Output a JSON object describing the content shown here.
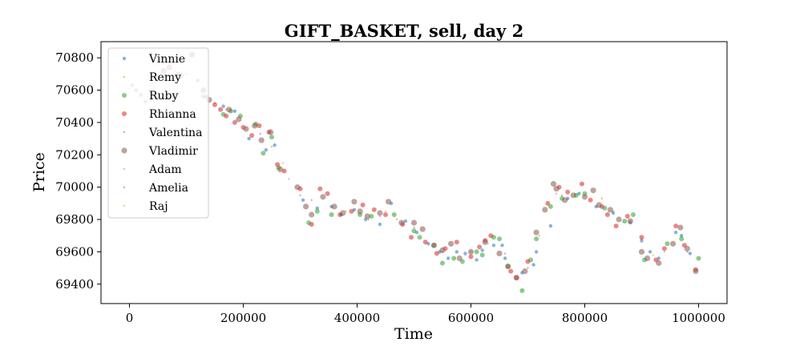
{
  "chart_data": {
    "type": "scatter",
    "title": "GIFT_BASKET, sell, day 2",
    "xlabel": "Time",
    "ylabel": "Price",
    "xlim": [
      -50000,
      1050000
    ],
    "ylim": [
      69280,
      70900
    ],
    "xticks": [
      0,
      200000,
      400000,
      600000,
      800000,
      1000000
    ],
    "xtick_labels": [
      "0",
      "200000",
      "400000",
      "600000",
      "800000",
      "1000000"
    ],
    "yticks": [
      69400,
      69600,
      69800,
      70000,
      70200,
      70400,
      70600,
      70800
    ],
    "ytick_labels": [
      "69400",
      "69600",
      "69800",
      "70000",
      "70200",
      "70400",
      "70600",
      "70800"
    ],
    "grid": false,
    "legend_position": "top-left",
    "series": [
      {
        "name": "Vinnie",
        "color": "#1f77b4",
        "size": "small",
        "points": [
          [
            5000,
            70630
          ],
          [
            12000,
            70600
          ],
          [
            20000,
            70570
          ],
          [
            28000,
            70530
          ],
          [
            60000,
            70680
          ],
          [
            120000,
            70660
          ],
          [
            135000,
            70560
          ],
          [
            165000,
            70500
          ],
          [
            185000,
            70470
          ],
          [
            210000,
            70300
          ],
          [
            240000,
            70230
          ],
          [
            255000,
            70260
          ],
          [
            305000,
            69920
          ],
          [
            330000,
            69870
          ],
          [
            355000,
            69880
          ],
          [
            372000,
            69830
          ],
          [
            395000,
            69860
          ],
          [
            415000,
            69800
          ],
          [
            440000,
            69770
          ],
          [
            460000,
            69900
          ],
          [
            485000,
            69790
          ],
          [
            505000,
            69720
          ],
          [
            525000,
            69650
          ],
          [
            545000,
            69600
          ],
          [
            560000,
            69560
          ],
          [
            575000,
            69600
          ],
          [
            590000,
            69590
          ],
          [
            610000,
            69550
          ],
          [
            620000,
            69610
          ],
          [
            640000,
            69640
          ],
          [
            655000,
            69640
          ],
          [
            660000,
            69560
          ],
          [
            690000,
            69470
          ],
          [
            710000,
            69520
          ],
          [
            715000,
            69600
          ],
          [
            740000,
            69760
          ],
          [
            770000,
            69930
          ],
          [
            790000,
            69960
          ],
          [
            820000,
            69880
          ],
          [
            850000,
            69840
          ],
          [
            880000,
            69780
          ],
          [
            900000,
            69670
          ],
          [
            915000,
            69600
          ],
          [
            930000,
            69560
          ],
          [
            960000,
            69720
          ],
          [
            970000,
            69700
          ],
          [
            985000,
            69590
          ]
        ]
      },
      {
        "name": "Remy",
        "color": "#ff7f0e",
        "size": "tiny",
        "points": [
          [
            0,
            70610
          ],
          [
            35000,
            70580
          ],
          [
            80000,
            70720
          ],
          [
            150000,
            70520
          ],
          [
            250000,
            70250
          ],
          [
            380000,
            69850
          ],
          [
            470000,
            69800
          ],
          [
            600000,
            69600
          ],
          [
            720000,
            69700
          ],
          [
            830000,
            69930
          ],
          [
            940000,
            69600
          ]
        ]
      },
      {
        "name": "Ruby",
        "color": "#2ca02c",
        "size": "medium",
        "points": [
          [
            85000,
            70700
          ],
          [
            130000,
            70560
          ],
          [
            165000,
            70450
          ],
          [
            178000,
            70470
          ],
          [
            195000,
            70440
          ],
          [
            222000,
            70390
          ],
          [
            235000,
            70210
          ],
          [
            250000,
            70310
          ],
          [
            262000,
            70120
          ],
          [
            315000,
            69780
          ],
          [
            330000,
            69850
          ],
          [
            355000,
            69830
          ],
          [
            405000,
            69830
          ],
          [
            425000,
            69820
          ],
          [
            465000,
            69830
          ],
          [
            500000,
            69730
          ],
          [
            510000,
            69690
          ],
          [
            535000,
            69640
          ],
          [
            550000,
            69530
          ],
          [
            570000,
            69560
          ],
          [
            585000,
            69540
          ],
          [
            610000,
            69600
          ],
          [
            620000,
            69580
          ],
          [
            640000,
            69690
          ],
          [
            650000,
            69680
          ],
          [
            665000,
            69510
          ],
          [
            690000,
            69360
          ],
          [
            705000,
            69550
          ],
          [
            715000,
            69680
          ],
          [
            740000,
            69880
          ],
          [
            760000,
            69930
          ],
          [
            785000,
            69950
          ],
          [
            800000,
            69960
          ],
          [
            835000,
            69870
          ],
          [
            870000,
            69790
          ],
          [
            885000,
            69830
          ],
          [
            905000,
            69550
          ],
          [
            945000,
            69650
          ],
          [
            970000,
            69680
          ],
          [
            1000000,
            69560
          ]
        ]
      },
      {
        "name": "Rhianna",
        "color": "#d62728",
        "size": "medium",
        "points": [
          [
            150000,
            70510
          ],
          [
            160000,
            70480
          ],
          [
            170000,
            70440
          ],
          [
            185000,
            70400
          ],
          [
            200000,
            70370
          ],
          [
            215000,
            70320
          ],
          [
            228000,
            70380
          ],
          [
            245000,
            70340
          ],
          [
            260000,
            70140
          ],
          [
            272000,
            70100
          ],
          [
            300000,
            69990
          ],
          [
            320000,
            69770
          ],
          [
            335000,
            69990
          ],
          [
            348000,
            69960
          ],
          [
            370000,
            69830
          ],
          [
            390000,
            69850
          ],
          [
            410000,
            69890
          ],
          [
            430000,
            69860
          ],
          [
            450000,
            69830
          ],
          [
            480000,
            69770
          ],
          [
            495000,
            69690
          ],
          [
            520000,
            69660
          ],
          [
            540000,
            69590
          ],
          [
            555000,
            69620
          ],
          [
            575000,
            69660
          ],
          [
            600000,
            69570
          ],
          [
            615000,
            69630
          ],
          [
            625000,
            69670
          ],
          [
            635000,
            69700
          ],
          [
            670000,
            69480
          ],
          [
            680000,
            69440
          ],
          [
            700000,
            69540
          ],
          [
            735000,
            69900
          ],
          [
            755000,
            70000
          ],
          [
            770000,
            69970
          ],
          [
            795000,
            70020
          ],
          [
            810000,
            69920
          ],
          [
            830000,
            69880
          ],
          [
            840000,
            69830
          ],
          [
            855000,
            69760
          ],
          [
            875000,
            69820
          ],
          [
            900000,
            69690
          ],
          [
            925000,
            69550
          ],
          [
            940000,
            69620
          ],
          [
            960000,
            69760
          ],
          [
            975000,
            69640
          ],
          [
            995000,
            69490
          ]
        ]
      },
      {
        "name": "Valentina",
        "color": "#9467bd",
        "size": "tiny",
        "points": [
          [
            170000,
            70480
          ],
          [
            230000,
            70330
          ],
          [
            320000,
            69920
          ],
          [
            420000,
            69800
          ],
          [
            550000,
            69600
          ],
          [
            660000,
            69590
          ],
          [
            760000,
            69950
          ],
          [
            880000,
            69790
          ]
        ]
      },
      {
        "name": "Vladimir",
        "color": "#8c564b",
        "size": "large",
        "points": [
          [
            60000,
            70720
          ],
          [
            70000,
            70740
          ],
          [
            90000,
            70690
          ],
          [
            110000,
            70820
          ],
          [
            130000,
            70600
          ],
          [
            140000,
            70540
          ],
          [
            175000,
            70480
          ],
          [
            192000,
            70420
          ],
          [
            205000,
            70360
          ],
          [
            220000,
            70380
          ],
          [
            232000,
            70290
          ],
          [
            248000,
            70340
          ],
          [
            265000,
            70110
          ],
          [
            295000,
            70000
          ],
          [
            310000,
            69880
          ],
          [
            320000,
            69830
          ],
          [
            340000,
            69940
          ],
          [
            360000,
            69880
          ],
          [
            375000,
            69840
          ],
          [
            395000,
            69910
          ],
          [
            405000,
            69850
          ],
          [
            418000,
            69820
          ],
          [
            440000,
            69840
          ],
          [
            455000,
            69910
          ],
          [
            478000,
            69780
          ],
          [
            500000,
            69780
          ],
          [
            515000,
            69740
          ],
          [
            535000,
            69640
          ],
          [
            550000,
            69610
          ],
          [
            565000,
            69650
          ],
          [
            580000,
            69560
          ],
          [
            600000,
            69600
          ],
          [
            625000,
            69660
          ],
          [
            650000,
            69590
          ],
          [
            665000,
            69510
          ],
          [
            680000,
            69440
          ],
          [
            695000,
            69480
          ],
          [
            715000,
            69720
          ],
          [
            730000,
            69860
          ],
          [
            745000,
            70020
          ],
          [
            750000,
            69990
          ],
          [
            765000,
            69920
          ],
          [
            780000,
            69950
          ],
          [
            800000,
            69940
          ],
          [
            815000,
            69980
          ],
          [
            825000,
            69890
          ],
          [
            845000,
            69860
          ],
          [
            860000,
            69800
          ],
          [
            880000,
            69790
          ],
          [
            900000,
            69600
          ],
          [
            910000,
            69560
          ],
          [
            930000,
            69530
          ],
          [
            955000,
            69650
          ],
          [
            968000,
            69750
          ],
          [
            980000,
            69620
          ],
          [
            995000,
            69480
          ]
        ]
      },
      {
        "name": "Adam",
        "color": "#e377c2",
        "size": "tiny",
        "points": [
          [
            140000,
            70530
          ],
          [
            280000,
            70050
          ],
          [
            440000,
            69820
          ],
          [
            590000,
            69580
          ],
          [
            750000,
            69960
          ],
          [
            900000,
            69660
          ]
        ]
      },
      {
        "name": "Amelia",
        "color": "#7f7f7f",
        "size": "tiny",
        "points": [
          [
            100000,
            70700
          ],
          [
            300000,
            69950
          ],
          [
            500000,
            69750
          ],
          [
            700000,
            69500
          ],
          [
            850000,
            69850
          ],
          [
            980000,
            69600
          ]
        ]
      },
      {
        "name": "Raj",
        "color": "#bcbd22",
        "size": "tiny",
        "points": [
          [
            50000,
            70660
          ],
          [
            270000,
            70150
          ],
          [
            450000,
            69850
          ],
          [
            630000,
            69650
          ],
          [
            780000,
            69940
          ],
          [
            920000,
            69580
          ]
        ]
      }
    ]
  }
}
